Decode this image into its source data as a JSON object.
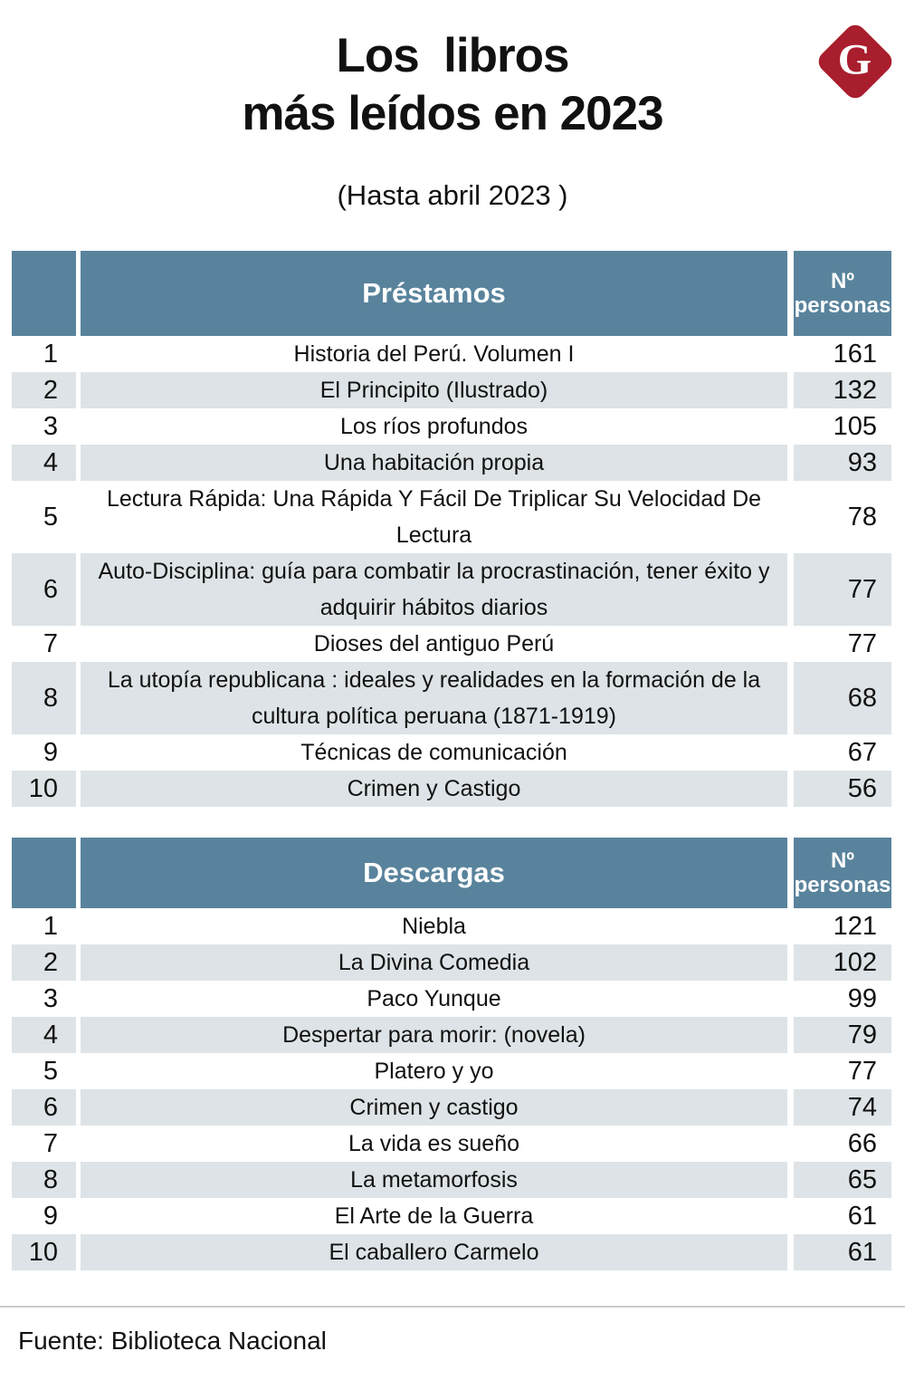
{
  "header": {
    "title_line1": "Los  libros",
    "title_line2": "más leídos en 2023",
    "subtitle": "(Hasta abril 2023 )",
    "logo_letter": "G"
  },
  "colors": {
    "header_blue": "#59839C",
    "stripe_gray": "#DDE3E6",
    "logo_red": "#A91E2D",
    "divider_gray": "#C9CDD0",
    "text": "#111111"
  },
  "chart_data": [
    {
      "type": "table",
      "title": "Préstamos",
      "count_header": [
        "Nº",
        "personas"
      ],
      "rows": [
        {
          "rank": "1",
          "title": "Historia del Perú. Volumen I",
          "count": 161
        },
        {
          "rank": "2",
          "title": "El Principito (Ilustrado)",
          "count": 132
        },
        {
          "rank": "3",
          "title": "Los ríos profundos",
          "count": 105
        },
        {
          "rank": "4",
          "title": "Una habitación propia",
          "count": 93
        },
        {
          "rank": "5",
          "title": "Lectura Rápida: Una Rápida Y Fácil De Triplicar Su Velocidad De Lectura",
          "count": 78
        },
        {
          "rank": "6",
          "title": "Auto-Disciplina: guía para combatir la procrastinación, tener éxito y adquirir hábitos diarios",
          "count": 77
        },
        {
          "rank": "7",
          "title": "Dioses del antiguo Perú",
          "count": 77
        },
        {
          "rank": "8",
          "title": "La utopía republicana : ideales y realidades en la formación de la cultura política peruana (1871-1919)",
          "count": 68
        },
        {
          "rank": "9",
          "title": "Técnicas de comunicación",
          "count": 67
        },
        {
          "rank": "10",
          "title": "Crimen y Castigo",
          "count": 56
        }
      ]
    },
    {
      "type": "table",
      "title": "Descargas",
      "count_header": [
        "Nº",
        "personas"
      ],
      "rows": [
        {
          "rank": "1",
          "title": "Niebla",
          "count": 121
        },
        {
          "rank": "2",
          "title": "La Divina Comedia",
          "count": 102
        },
        {
          "rank": "3",
          "title": "Paco Yunque",
          "count": 99
        },
        {
          "rank": "4",
          "title": "Despertar para morir: (novela)",
          "count": 79
        },
        {
          "rank": "5",
          "title": "Platero y yo",
          "count": 77
        },
        {
          "rank": "6",
          "title": "Crimen y castigo",
          "count": 74
        },
        {
          "rank": "7",
          "title": "La vida es sueño",
          "count": 66
        },
        {
          "rank": "8",
          "title": "La metamorfosis",
          "count": 65
        },
        {
          "rank": "9",
          "title": "El Arte de la Guerra",
          "count": 61
        },
        {
          "rank": "10",
          "title": "El caballero Carmelo",
          "count": 61
        }
      ]
    }
  ],
  "footer": {
    "source": "Fuente: Biblioteca Nacional"
  }
}
